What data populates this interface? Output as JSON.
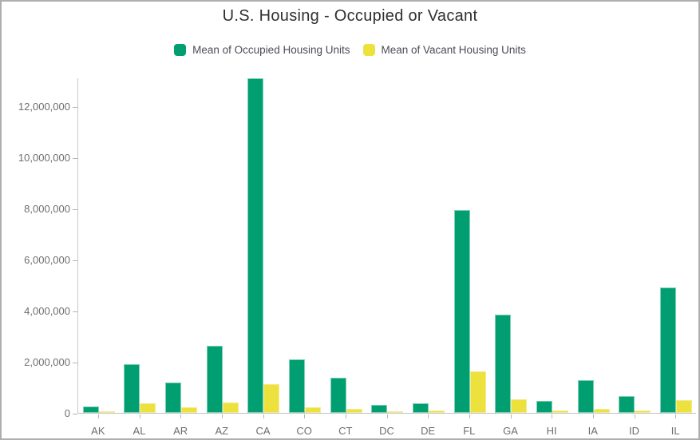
{
  "chart_data": {
    "type": "bar",
    "title": "U.S. Housing - Occupied or Vacant",
    "xlabel": "",
    "ylabel": "",
    "grid": false,
    "legend_position": "top",
    "categories": [
      "AK",
      "AL",
      "AR",
      "AZ",
      "CA",
      "CO",
      "CT",
      "DC",
      "DE",
      "FL",
      "GA",
      "HI",
      "IA",
      "ID",
      "IL"
    ],
    "series": [
      {
        "name": "Mean of Occupied Housing Units",
        "color": "#009e70",
        "values": [
          260000,
          1900000,
          1180000,
          2630000,
          13100000,
          2100000,
          1390000,
          310000,
          380000,
          7950000,
          3830000,
          470000,
          1270000,
          650000,
          4900000
        ]
      },
      {
        "name": "Mean of Vacant Housing Units",
        "color": "#ede23d",
        "values": [
          70000,
          390000,
          225000,
          415000,
          1120000,
          230000,
          145000,
          40000,
          95000,
          1620000,
          520000,
          95000,
          150000,
          105000,
          490000
        ]
      }
    ],
    "ylim": [
      0,
      13125000
    ],
    "yticks": {
      "values": [
        0,
        2000000,
        4000000,
        6000000,
        8000000,
        10000000,
        12000000
      ],
      "labels": [
        "0",
        "2,000,000",
        "4,000,000",
        "6,000,000",
        "8,000,000",
        "10,000,000",
        "12,000,000"
      ]
    }
  },
  "colors": {
    "occupied": "#009e70",
    "occupied_edge": "#7fd1b4",
    "vacant": "#ede23d",
    "vacant_edge": "#f3eb94",
    "axis_line": "#c9c9c9",
    "tick": "#b5b5b5",
    "axis_text": "#6e6e6e",
    "title_text": "#303030",
    "legend_text": "#4c4c55",
    "frame_border": "#aeaeae"
  }
}
